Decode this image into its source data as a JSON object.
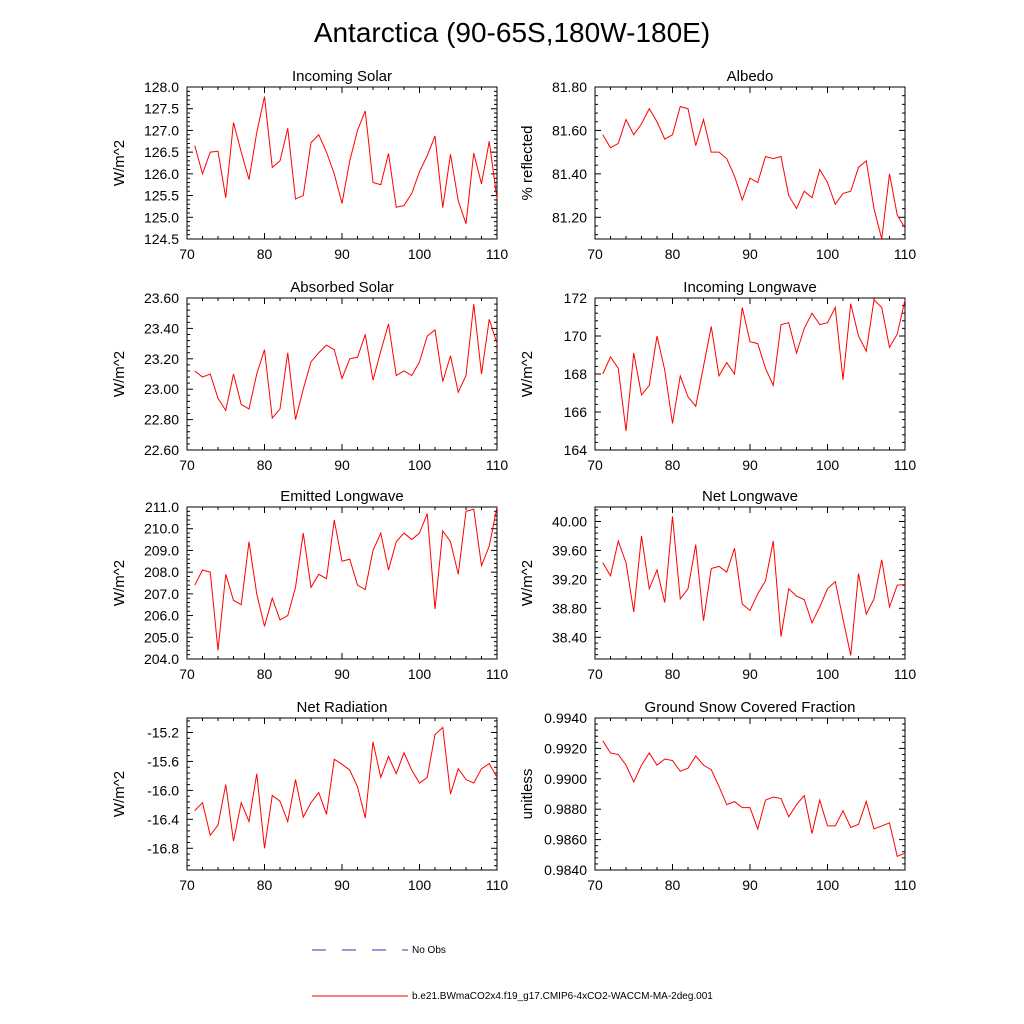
{
  "figure": {
    "title": "Antarctica (90-65S,180W-180E)",
    "legend": [
      {
        "label": "No Obs",
        "color": "#3333aa",
        "dash": true
      },
      {
        "label": "b.e21.BWmaCO2x4.f19_g17.CMIP6-4xCO2-WACCM-MA-2deg.001",
        "color": "#ff0000",
        "dash": false
      }
    ]
  },
  "chart_data": [
    {
      "type": "line",
      "title": "Incoming Solar",
      "xlabel": "",
      "ylabel": "W/m^2",
      "xlim": [
        70,
        110
      ],
      "ylim": [
        124.5,
        128.0
      ],
      "xticks": [
        70,
        80,
        90,
        100,
        110
      ],
      "yticks": [
        124.5,
        125.0,
        125.5,
        126.0,
        126.5,
        127.0,
        127.5,
        128.0
      ],
      "ytick_labels": [
        "124.5",
        "125.0",
        "125.5",
        "126.0",
        "126.5",
        "127.0",
        "127.5",
        "128.0"
      ],
      "series": [
        {
          "name": "b.e21.BWmaCO2x4.f19_g17.CMIP6-4xCO2-WACCM-MA-2deg.001",
          "color": "#ff0000",
          "x": [
            71,
            72,
            73,
            74,
            75,
            76,
            77,
            78,
            79,
            80,
            81,
            82,
            83,
            84,
            85,
            86,
            87,
            88,
            89,
            90,
            91,
            92,
            93,
            94,
            95,
            96,
            97,
            98,
            99,
            100,
            101,
            102,
            103,
            104,
            105,
            106,
            107,
            108,
            109,
            110
          ],
          "y": [
            126.65,
            126.0,
            126.5,
            126.52,
            125.45,
            127.18,
            126.5,
            125.87,
            126.95,
            127.78,
            126.15,
            126.3,
            127.05,
            125.42,
            125.5,
            126.72,
            126.9,
            126.5,
            126.0,
            125.32,
            126.3,
            127.0,
            127.45,
            125.8,
            125.75,
            126.47,
            125.23,
            125.27,
            125.55,
            126.05,
            126.42,
            126.87,
            125.22,
            126.45,
            125.38,
            124.85,
            126.48,
            125.77,
            126.75,
            125.42
          ]
        }
      ]
    },
    {
      "type": "line",
      "title": "Albedo",
      "xlabel": "",
      "ylabel": "% reflected",
      "xlim": [
        70,
        110
      ],
      "ylim": [
        81.1,
        81.8
      ],
      "xticks": [
        70,
        80,
        90,
        100,
        110
      ],
      "yticks": [
        81.2,
        81.4,
        81.6,
        81.8
      ],
      "ytick_labels": [
        "81.20",
        "81.40",
        "81.60",
        "81.80"
      ],
      "series": [
        {
          "name": "b.e21.BWmaCO2x4.f19_g17.CMIP6-4xCO2-WACCM-MA-2deg.001",
          "color": "#ff0000",
          "x": [
            71,
            72,
            73,
            74,
            75,
            76,
            77,
            78,
            79,
            80,
            81,
            82,
            83,
            84,
            85,
            86,
            87,
            88,
            89,
            90,
            91,
            92,
            93,
            94,
            95,
            96,
            97,
            98,
            99,
            100,
            101,
            102,
            103,
            104,
            105,
            106,
            107,
            108,
            109,
            110
          ],
          "y": [
            81.58,
            81.52,
            81.54,
            81.65,
            81.58,
            81.63,
            81.7,
            81.64,
            81.56,
            81.58,
            81.71,
            81.7,
            81.53,
            81.65,
            81.5,
            81.5,
            81.47,
            81.39,
            81.28,
            81.38,
            81.36,
            81.48,
            81.47,
            81.48,
            81.3,
            81.24,
            81.32,
            81.29,
            81.42,
            81.36,
            81.26,
            81.31,
            81.32,
            81.43,
            81.46,
            81.24,
            81.1,
            81.4,
            81.21,
            81.15
          ]
        }
      ]
    },
    {
      "type": "line",
      "title": "Absorbed Solar",
      "xlabel": "",
      "ylabel": "W/m^2",
      "xlim": [
        70,
        110
      ],
      "ylim": [
        22.6,
        23.6
      ],
      "xticks": [
        70,
        80,
        90,
        100,
        110
      ],
      "yticks": [
        22.6,
        22.8,
        23.0,
        23.2,
        23.4,
        23.6
      ],
      "ytick_labels": [
        "22.60",
        "22.80",
        "23.00",
        "23.20",
        "23.40",
        "23.60"
      ],
      "series": [
        {
          "name": "b.e21.BWmaCO2x4.f19_g17.CMIP6-4xCO2-WACCM-MA-2deg.001",
          "color": "#ff0000",
          "x": [
            71,
            72,
            73,
            74,
            75,
            76,
            77,
            78,
            79,
            80,
            81,
            82,
            83,
            84,
            85,
            86,
            87,
            88,
            89,
            90,
            91,
            92,
            93,
            94,
            95,
            96,
            97,
            98,
            99,
            100,
            101,
            102,
            103,
            104,
            105,
            106,
            107,
            108,
            109,
            110
          ],
          "y": [
            23.12,
            23.08,
            23.1,
            22.94,
            22.86,
            23.1,
            22.9,
            22.87,
            23.1,
            23.26,
            22.81,
            22.87,
            23.24,
            22.8,
            23.0,
            23.18,
            23.24,
            23.29,
            23.26,
            23.07,
            23.2,
            23.21,
            23.36,
            23.06,
            23.25,
            23.43,
            23.09,
            23.12,
            23.09,
            23.18,
            23.35,
            23.39,
            23.05,
            23.22,
            22.98,
            23.09,
            23.56,
            23.1,
            23.46,
            23.3
          ]
        }
      ]
    },
    {
      "type": "line",
      "title": "Incoming Longwave",
      "xlabel": "",
      "ylabel": "W/m^2",
      "xlim": [
        70,
        110
      ],
      "ylim": [
        164,
        172
      ],
      "xticks": [
        70,
        80,
        90,
        100,
        110
      ],
      "yticks": [
        164,
        166,
        168,
        170,
        172
      ],
      "ytick_labels": [
        "164",
        "166",
        "168",
        "170",
        "172"
      ],
      "series": [
        {
          "name": "b.e21.BWmaCO2x4.f19_g17.CMIP6-4xCO2-WACCM-MA-2deg.001",
          "color": "#ff0000",
          "x": [
            71,
            72,
            73,
            74,
            75,
            76,
            77,
            78,
            79,
            80,
            81,
            82,
            83,
            84,
            85,
            86,
            87,
            88,
            89,
            90,
            91,
            92,
            93,
            94,
            95,
            96,
            97,
            98,
            99,
            100,
            101,
            102,
            103,
            104,
            105,
            106,
            107,
            108,
            109,
            110
          ],
          "y": [
            168.0,
            168.9,
            168.3,
            165.0,
            169.1,
            166.9,
            167.4,
            170.0,
            168.2,
            165.4,
            167.9,
            166.8,
            166.3,
            168.4,
            170.5,
            167.9,
            168.6,
            168.0,
            171.5,
            169.7,
            169.6,
            168.3,
            167.4,
            170.6,
            170.7,
            169.1,
            170.4,
            171.2,
            170.6,
            170.7,
            171.5,
            167.7,
            171.7,
            170.0,
            169.2,
            171.9,
            171.5,
            169.4,
            170.1,
            171.9
          ]
        }
      ]
    },
    {
      "type": "line",
      "title": "Emitted Longwave",
      "xlabel": "",
      "ylabel": "W/m^2",
      "xlim": [
        70,
        110
      ],
      "ylim": [
        204.0,
        211.0
      ],
      "xticks": [
        70,
        80,
        90,
        100,
        110
      ],
      "yticks": [
        204,
        205,
        206,
        207,
        208,
        209,
        210,
        211
      ],
      "ytick_labels": [
        "204.0",
        "205.0",
        "206.0",
        "207.0",
        "208.0",
        "209.0",
        "210.0",
        "211.0"
      ],
      "series": [
        {
          "name": "b.e21.BWmaCO2x4.f19_g17.CMIP6-4xCO2-WACCM-MA-2deg.001",
          "color": "#ff0000",
          "x": [
            71,
            72,
            73,
            74,
            75,
            76,
            77,
            78,
            79,
            80,
            81,
            82,
            83,
            84,
            85,
            86,
            87,
            88,
            89,
            90,
            91,
            92,
            93,
            94,
            95,
            96,
            97,
            98,
            99,
            100,
            101,
            102,
            103,
            104,
            105,
            106,
            107,
            108,
            109,
            110
          ],
          "y": [
            207.4,
            208.1,
            208.0,
            204.4,
            207.9,
            206.7,
            206.5,
            209.4,
            207.0,
            205.5,
            206.8,
            205.8,
            206.0,
            207.3,
            209.8,
            207.3,
            207.9,
            207.7,
            210.4,
            208.5,
            208.6,
            207.4,
            207.2,
            209.0,
            209.8,
            208.1,
            209.4,
            209.8,
            209.5,
            209.8,
            210.7,
            206.3,
            209.9,
            209.4,
            207.9,
            210.8,
            210.9,
            208.3,
            209.2,
            211.0
          ]
        }
      ]
    },
    {
      "type": "line",
      "title": "Net Longwave",
      "xlabel": "",
      "ylabel": "W/m^2",
      "xlim": [
        70,
        110
      ],
      "ylim": [
        38.1,
        40.2
      ],
      "xticks": [
        70,
        80,
        90,
        100,
        110
      ],
      "yticks": [
        38.4,
        38.8,
        39.2,
        39.6,
        40.0
      ],
      "ytick_labels": [
        "38.40",
        "38.80",
        "39.20",
        "39.60",
        "40.00"
      ],
      "series": [
        {
          "name": "b.e21.BWmaCO2x4.f19_g17.CMIP6-4xCO2-WACCM-MA-2deg.001",
          "color": "#ff0000",
          "x": [
            71,
            72,
            73,
            74,
            75,
            76,
            77,
            78,
            79,
            80,
            81,
            82,
            83,
            84,
            85,
            86,
            87,
            88,
            89,
            90,
            91,
            92,
            93,
            94,
            95,
            96,
            97,
            98,
            99,
            100,
            101,
            102,
            103,
            104,
            105,
            106,
            107,
            108,
            109,
            110
          ],
          "y": [
            39.43,
            39.25,
            39.73,
            39.43,
            38.75,
            39.8,
            39.07,
            39.33,
            38.88,
            40.07,
            38.93,
            39.07,
            39.68,
            38.63,
            39.35,
            39.38,
            39.3,
            39.63,
            38.86,
            38.77,
            39.0,
            39.18,
            39.73,
            38.41,
            39.07,
            38.97,
            38.92,
            38.6,
            38.82,
            39.07,
            39.17,
            38.65,
            38.15,
            39.28,
            38.72,
            38.93,
            39.47,
            38.82,
            39.12,
            39.13
          ]
        }
      ]
    },
    {
      "type": "line",
      "title": "Net Radiation",
      "xlabel": "",
      "ylabel": "W/m^2",
      "xlim": [
        70,
        110
      ],
      "ylim": [
        -17.1,
        -15.0
      ],
      "xticks": [
        70,
        80,
        90,
        100,
        110
      ],
      "yticks": [
        -16.8,
        -16.4,
        -16.0,
        -15.6,
        -15.2
      ],
      "ytick_labels": [
        "-16.8",
        "-16.4",
        "-16.0",
        "-15.6",
        "-15.2"
      ],
      "series": [
        {
          "name": "b.e21.BWmaCO2x4.f19_g17.CMIP6-4xCO2-WACCM-MA-2deg.001",
          "color": "#ff0000",
          "x": [
            71,
            72,
            73,
            74,
            75,
            76,
            77,
            78,
            79,
            80,
            81,
            82,
            83,
            84,
            85,
            86,
            87,
            88,
            89,
            90,
            91,
            92,
            93,
            94,
            95,
            96,
            97,
            98,
            99,
            100,
            101,
            102,
            103,
            104,
            105,
            106,
            107,
            108,
            109,
            110
          ],
          "y": [
            -16.28,
            -16.17,
            -16.62,
            -16.48,
            -15.92,
            -16.7,
            -16.17,
            -16.43,
            -15.77,
            -16.8,
            -16.07,
            -16.15,
            -16.43,
            -15.85,
            -16.37,
            -16.17,
            -16.03,
            -16.33,
            -15.57,
            -15.64,
            -15.72,
            -15.95,
            -16.38,
            -15.33,
            -15.82,
            -15.53,
            -15.77,
            -15.48,
            -15.72,
            -15.9,
            -15.82,
            -15.23,
            -15.13,
            -16.05,
            -15.7,
            -15.85,
            -15.9,
            -15.7,
            -15.63,
            -15.82
          ]
        }
      ]
    },
    {
      "type": "line",
      "title": "Ground Snow Covered Fraction",
      "xlabel": "",
      "ylabel": "unitless",
      "xlim": [
        70,
        110
      ],
      "ylim": [
        0.984,
        0.994
      ],
      "xticks": [
        70,
        80,
        90,
        100,
        110
      ],
      "yticks": [
        0.984,
        0.986,
        0.988,
        0.99,
        0.992,
        0.994
      ],
      "ytick_labels": [
        "0.9840",
        "0.9860",
        "0.9880",
        "0.9900",
        "0.9920",
        "0.9940"
      ],
      "series": [
        {
          "name": "b.e21.BWmaCO2x4.f19_g17.CMIP6-4xCO2-WACCM-MA-2deg.001",
          "color": "#ff0000",
          "x": [
            71,
            72,
            73,
            74,
            75,
            76,
            77,
            78,
            79,
            80,
            81,
            82,
            83,
            84,
            85,
            86,
            87,
            88,
            89,
            90,
            91,
            92,
            93,
            94,
            95,
            96,
            97,
            98,
            99,
            100,
            101,
            102,
            103,
            104,
            105,
            106,
            107,
            108,
            109,
            110
          ],
          "y": [
            0.9925,
            0.9917,
            0.9916,
            0.9909,
            0.9898,
            0.9909,
            0.9917,
            0.9909,
            0.9913,
            0.9912,
            0.9905,
            0.9907,
            0.9915,
            0.9909,
            0.9906,
            0.9895,
            0.9883,
            0.9885,
            0.9881,
            0.9881,
            0.9867,
            0.9886,
            0.9888,
            0.9887,
            0.9875,
            0.9883,
            0.9889,
            0.9864,
            0.9886,
            0.9869,
            0.9869,
            0.9879,
            0.9868,
            0.987,
            0.9885,
            0.9867,
            0.9869,
            0.9871,
            0.9849,
            0.9851
          ]
        }
      ]
    }
  ]
}
